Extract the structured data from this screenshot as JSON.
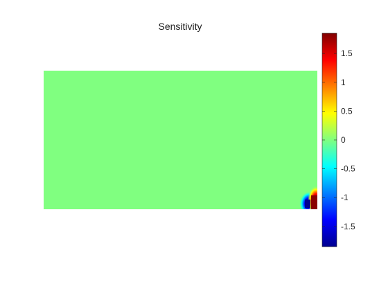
{
  "chart_data": {
    "type": "heatmap",
    "title": "Sensitivity",
    "xlabel": "",
    "ylabel": "",
    "colormap": "jet",
    "clim": [
      -1.85,
      1.85
    ],
    "background_value": 0.0,
    "colorbar": {
      "location": "right",
      "ticks": [
        1.5,
        1,
        0.5,
        0,
        -0.5,
        -1,
        -1.5
      ],
      "tick_labels": [
        "1.5",
        "1",
        "0.5",
        "0",
        "-0.5",
        "-1",
        "-1.5"
      ]
    },
    "field_peaks": {
      "max": 1.85,
      "min": -1.85,
      "location": "bottom-right corner"
    },
    "colors": {
      "background_field": "#80ff80",
      "jet_stops": [
        "#00008f",
        "#0000ff",
        "#00ffff",
        "#80ff80",
        "#ffff00",
        "#ff0000",
        "#800000"
      ]
    }
  }
}
